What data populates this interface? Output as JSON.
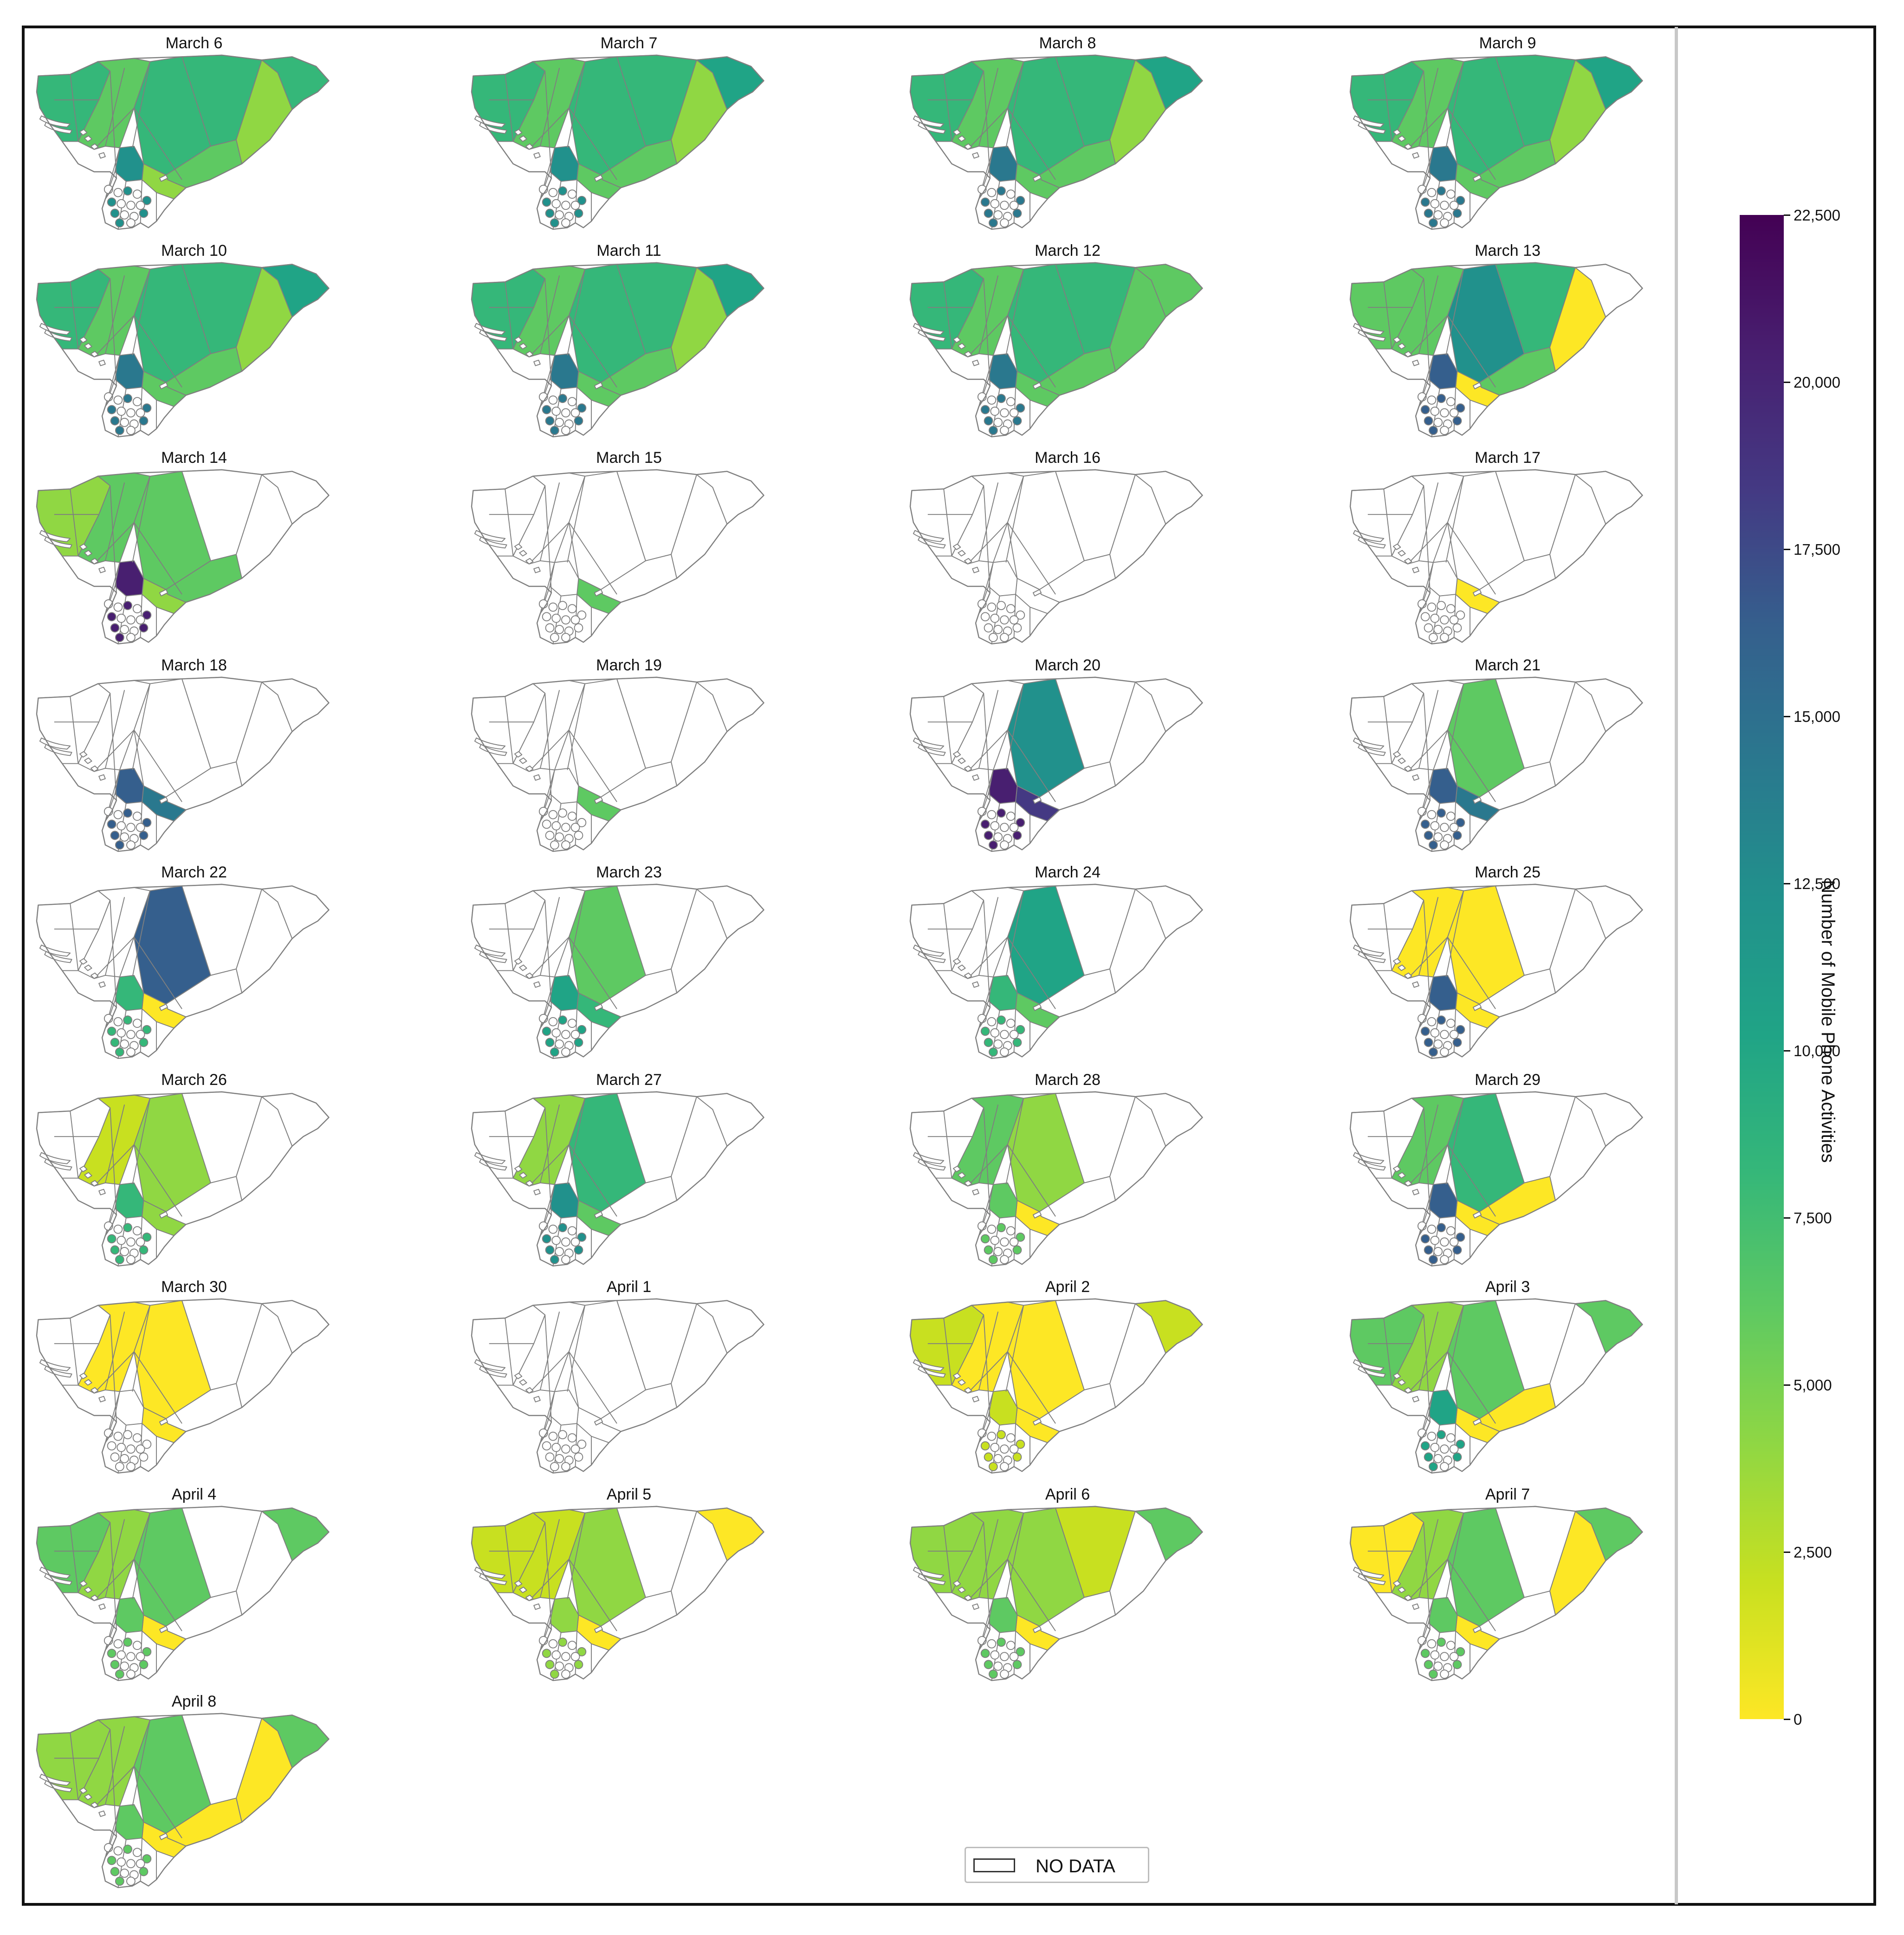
{
  "colorbar": {
    "title": "Number of Mobile Phone Activities",
    "min": 0,
    "max": 22500,
    "ticks": [
      {
        "value": 22500,
        "label": "22,500"
      },
      {
        "value": 20000,
        "label": "20,000"
      },
      {
        "value": 17500,
        "label": "17,500"
      },
      {
        "value": 15000,
        "label": "15,000"
      },
      {
        "value": 12500,
        "label": "12,500"
      },
      {
        "value": 10000,
        "label": "10,000"
      },
      {
        "value": 7500,
        "label": "7,500"
      },
      {
        "value": 5000,
        "label": "5,000"
      },
      {
        "value": 2500,
        "label": "2,500"
      },
      {
        "value": 0,
        "label": "0"
      }
    ],
    "colormap": "viridis (reversed: yellow = 0, dark purple = 22,500)"
  },
  "legend": {
    "label": "NO DATA",
    "swatch_color": "#ffffff"
  },
  "colors": {
    "no_data": "#ffffff",
    "region_border": "#7f7f7f",
    "frame": "#111111"
  },
  "chart_data": {
    "type": "choropleth",
    "layout": "small multiples, 4 columns",
    "palette": [
      "#fde725",
      "#c8e020",
      "#90d743",
      "#5ec962",
      "#35b779",
      "#20a486",
      "#21918c",
      "#2a788e",
      "#355f8d",
      "#443983",
      "#481f70",
      "#440154"
    ],
    "panels": [
      {
        "title": "March 6",
        "regions": {
          "west": 4,
          "corridor": 3,
          "central": 4,
          "northeast": 4,
          "east": 2,
          "far_east": 4,
          "south_big": 3,
          "south_small": 2,
          "core": 6
        }
      },
      {
        "title": "March 7",
        "regions": {
          "west": 4,
          "corridor": 3,
          "central": 4,
          "northeast": 4,
          "east": 2,
          "far_east": 5,
          "south_big": 3,
          "south_small": 3,
          "core": 6
        }
      },
      {
        "title": "March 8",
        "regions": {
          "west": 4,
          "corridor": 3,
          "central": 4,
          "northeast": 4,
          "east": 2,
          "far_east": 5,
          "south_big": 3,
          "south_small": 3,
          "core": 7
        }
      },
      {
        "title": "March 9",
        "regions": {
          "west": 4,
          "corridor": 3,
          "central": 4,
          "northeast": 4,
          "east": 2,
          "far_east": 5,
          "south_big": 3,
          "south_small": 3,
          "core": 7
        }
      },
      {
        "title": "March 10",
        "regions": {
          "west": 4,
          "corridor": 3,
          "central": 4,
          "northeast": 4,
          "east": 2,
          "far_east": 5,
          "south_big": 3,
          "south_small": 3,
          "core": 7
        }
      },
      {
        "title": "March 11",
        "regions": {
          "west": 4,
          "corridor": 3,
          "central": 4,
          "northeast": 4,
          "east": 2,
          "far_east": 5,
          "south_big": 3,
          "south_small": 3,
          "core": 7
        }
      },
      {
        "title": "March 12",
        "regions": {
          "west": 4,
          "corridor": 3,
          "central": 4,
          "northeast": 4,
          "east": 3,
          "far_east": 3,
          "south_big": 3,
          "south_small": 3,
          "core": 7
        }
      },
      {
        "title": "March 13",
        "regions": {
          "west": 3,
          "corridor": 3,
          "central": 6,
          "northeast": 4,
          "east": 0,
          "far_east": null,
          "south_big": 3,
          "south_small": 0,
          "core": 8
        }
      },
      {
        "title": "March 14",
        "regions": {
          "west": 2,
          "corridor": 3,
          "central": 3,
          "northeast": null,
          "east": null,
          "far_east": null,
          "south_big": 3,
          "south_small": 2,
          "core": 10
        }
      },
      {
        "title": "March 15",
        "regions": {
          "west": null,
          "corridor": null,
          "central": null,
          "northeast": null,
          "east": null,
          "far_east": null,
          "south_big": null,
          "south_small": 3,
          "core": null
        }
      },
      {
        "title": "March 16",
        "regions": {
          "west": null,
          "corridor": null,
          "central": null,
          "northeast": null,
          "east": null,
          "far_east": null,
          "south_big": null,
          "south_small": null,
          "core": null
        }
      },
      {
        "title": "March 17",
        "regions": {
          "west": null,
          "corridor": null,
          "central": null,
          "northeast": null,
          "east": null,
          "far_east": null,
          "south_big": null,
          "south_small": 0,
          "core": null
        }
      },
      {
        "title": "March 18",
        "regions": {
          "west": null,
          "corridor": null,
          "central": null,
          "northeast": null,
          "east": null,
          "far_east": null,
          "south_big": null,
          "south_small": 7,
          "core": 8
        }
      },
      {
        "title": "March 19",
        "regions": {
          "west": null,
          "corridor": null,
          "central": null,
          "northeast": null,
          "east": null,
          "far_east": null,
          "south_big": null,
          "south_small": 3,
          "core": null
        }
      },
      {
        "title": "March 20",
        "regions": {
          "west": null,
          "corridor": null,
          "central": 6,
          "northeast": null,
          "east": null,
          "far_east": null,
          "south_big": null,
          "south_small": 9,
          "core": 10
        }
      },
      {
        "title": "March 21",
        "regions": {
          "west": null,
          "corridor": null,
          "central": 3,
          "northeast": null,
          "east": null,
          "far_east": null,
          "south_big": null,
          "south_small": 7,
          "core": 8
        }
      },
      {
        "title": "March 22",
        "regions": {
          "west": null,
          "corridor": null,
          "central": 8,
          "northeast": null,
          "east": null,
          "far_east": null,
          "south_big": null,
          "south_small": 0,
          "core": 4
        }
      },
      {
        "title": "March 23",
        "regions": {
          "west": null,
          "corridor": null,
          "central": 3,
          "northeast": null,
          "east": null,
          "far_east": null,
          "south_big": null,
          "south_small": 4,
          "core": 5
        }
      },
      {
        "title": "March 24",
        "regions": {
          "west": null,
          "corridor": null,
          "central": 5,
          "northeast": null,
          "east": null,
          "far_east": null,
          "south_big": null,
          "south_small": 3,
          "core": 4
        }
      },
      {
        "title": "March 25",
        "regions": {
          "west": null,
          "corridor": 0,
          "central": 0,
          "northeast": null,
          "east": null,
          "far_east": null,
          "south_big": null,
          "south_small": 0,
          "core": 8
        }
      },
      {
        "title": "March 26",
        "regions": {
          "west": null,
          "corridor": 1,
          "central": 2,
          "northeast": null,
          "east": null,
          "far_east": null,
          "south_big": null,
          "south_small": 2,
          "core": 4
        }
      },
      {
        "title": "March 27",
        "regions": {
          "west": null,
          "corridor": 2,
          "central": 4,
          "northeast": null,
          "east": null,
          "far_east": null,
          "south_big": null,
          "south_small": 3,
          "core": 6
        }
      },
      {
        "title": "March 28",
        "regions": {
          "west": null,
          "corridor": 3,
          "central": 2,
          "northeast": null,
          "east": null,
          "far_east": null,
          "south_big": null,
          "south_small": 0,
          "core": 3
        }
      },
      {
        "title": "March 29",
        "regions": {
          "west": null,
          "corridor": 3,
          "central": 4,
          "northeast": null,
          "east": null,
          "far_east": null,
          "south_big": 0,
          "south_small": 0,
          "core": 8
        }
      },
      {
        "title": "March 30",
        "regions": {
          "west": null,
          "corridor": 0,
          "central": 0,
          "northeast": null,
          "east": null,
          "far_east": null,
          "south_big": null,
          "south_small": 0,
          "core": null
        }
      },
      {
        "title": "April 1",
        "regions": {
          "west": null,
          "corridor": null,
          "central": null,
          "northeast": null,
          "east": null,
          "far_east": null,
          "south_big": null,
          "south_small": null,
          "core": null
        }
      },
      {
        "title": "April 2",
        "regions": {
          "west": 1,
          "corridor": 0,
          "central": 0,
          "northeast": null,
          "east": null,
          "far_east": 1,
          "south_big": null,
          "south_small": 0,
          "core": 1
        }
      },
      {
        "title": "April 3",
        "regions": {
          "west": 3,
          "corridor": 2,
          "central": 3,
          "northeast": null,
          "east": null,
          "far_east": 3,
          "south_big": 0,
          "south_small": 0,
          "core": 5
        }
      },
      {
        "title": "April 4",
        "regions": {
          "west": 3,
          "corridor": 2,
          "central": 3,
          "northeast": null,
          "east": null,
          "far_east": 3,
          "south_big": null,
          "south_small": 0,
          "core": 3
        }
      },
      {
        "title": "April 5",
        "regions": {
          "west": 1,
          "corridor": 1,
          "central": 2,
          "northeast": null,
          "east": null,
          "far_east": 0,
          "south_big": null,
          "south_small": 0,
          "core": 2
        }
      },
      {
        "title": "April 6",
        "regions": {
          "west": 2,
          "corridor": 2,
          "central": 2,
          "northeast": 1,
          "east": null,
          "far_east": 3,
          "south_big": null,
          "south_small": 0,
          "core": 3
        }
      },
      {
        "title": "April 7",
        "regions": {
          "west": 0,
          "corridor": 2,
          "central": 3,
          "northeast": null,
          "east": 0,
          "far_east": 3,
          "south_big": null,
          "south_small": 0,
          "core": 3
        }
      },
      {
        "title": "April 8",
        "regions": {
          "west": 2,
          "corridor": 2,
          "central": 3,
          "northeast": null,
          "east": 0,
          "far_east": 3,
          "south_big": 0,
          "south_small": 0,
          "core": 3
        }
      }
    ]
  }
}
